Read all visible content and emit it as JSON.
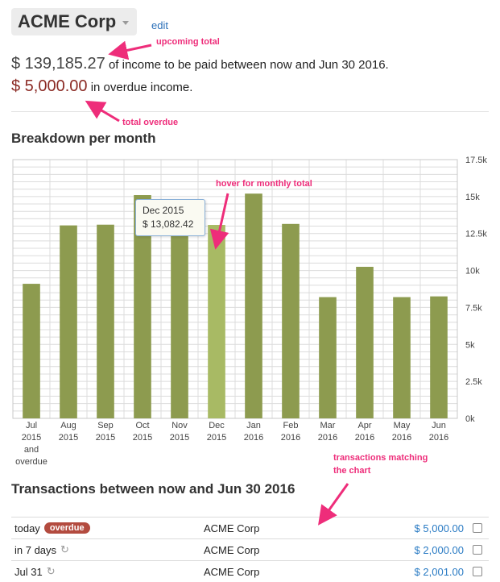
{
  "header": {
    "company": "ACME Corp",
    "edit_label": "edit"
  },
  "summary": {
    "upcoming_amount": "$ 139,185.27",
    "upcoming_text": "of income to be paid between now and Jun 30 2016.",
    "overdue_amount": "$ 5,000.00",
    "overdue_text": "in overdue income."
  },
  "annotations": {
    "upcoming_total": "upcoming total",
    "total_overdue": "total overdue",
    "hover": "hover for monthly total",
    "transactions_1": "transactions matching",
    "transactions_2": "the chart"
  },
  "chart_section": {
    "title": "Breakdown per month"
  },
  "tooltip": {
    "month": "Dec 2015",
    "amount": "$ 13,082.42"
  },
  "chart_data": {
    "type": "bar",
    "categories": [
      [
        "Jul",
        "2015",
        "and",
        "overdue"
      ],
      [
        "Aug",
        "2015"
      ],
      [
        "Sep",
        "2015"
      ],
      [
        "Oct",
        "2015"
      ],
      [
        "Nov",
        "2015"
      ],
      [
        "Dec",
        "2015"
      ],
      [
        "Jan",
        "2016"
      ],
      [
        "Feb",
        "2016"
      ],
      [
        "Mar",
        "2016"
      ],
      [
        "Apr",
        "2016"
      ],
      [
        "May",
        "2016"
      ],
      [
        "Jun",
        "2016"
      ]
    ],
    "values": [
      9100,
      13050,
      13100,
      15100,
      13000,
      13082.42,
      15200,
      13150,
      8200,
      10250,
      8200,
      8250
    ],
    "highlighted_index": 5,
    "ylim": [
      0,
      17500
    ],
    "yticks": [
      0,
      2500,
      5000,
      7500,
      10000,
      12500,
      15000,
      17500
    ],
    "ytick_labels": [
      "0k",
      "2.5k",
      "5k",
      "7.5k",
      "10k",
      "12.5k",
      "15k",
      "17.5k"
    ],
    "y_axis_side": "right",
    "grid": true,
    "colors": {
      "bar": "#8d9b4f",
      "bar_highlight": "#a8ba64",
      "grid": "#dcdcdc"
    }
  },
  "transactions": {
    "title": "Transactions between now and Jun 30 2016",
    "rows": [
      {
        "date": "today",
        "badge": "overdue",
        "repeat": false,
        "party": "ACME Corp",
        "amount": "$ 5,000.00"
      },
      {
        "date": "in 7 days",
        "badge": "",
        "repeat": true,
        "party": "ACME Corp",
        "amount": "$ 2,000.00"
      },
      {
        "date": "Jul 31",
        "badge": "",
        "repeat": true,
        "party": "ACME Corp",
        "amount": "$ 2,001.00"
      }
    ]
  }
}
